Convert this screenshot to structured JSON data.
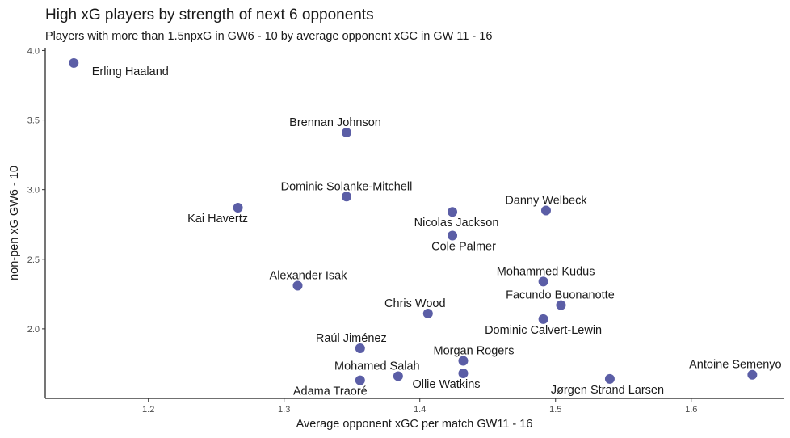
{
  "chart_data": {
    "type": "scatter",
    "title": "High xG players by strength of next 6 opponents",
    "subtitle": "Players with more than 1.5npxG in GW6 - 10 by average opponent xGC in GW 11 - 16",
    "xlabel": "Average opponent xGC per match GW11 - 16",
    "ylabel": "non-pen xG GW6 - 10",
    "xlim": [
      1.124,
      1.668
    ],
    "ylim": [
      1.5,
      4.02
    ],
    "x_ticks": [
      "1.2",
      "1.3",
      "1.4",
      "1.5",
      "1.6"
    ],
    "y_ticks": [
      "2.0",
      "2.5",
      "3.0",
      "3.5",
      "4.0"
    ],
    "grid": false,
    "point_color": "#5b5ea6",
    "points": [
      {
        "name": "Erling Haaland",
        "x": 1.145,
        "y": 3.91
      },
      {
        "name": "Brennan Johnson",
        "x": 1.346,
        "y": 3.41
      },
      {
        "name": "Dominic Solanke-Mitchell",
        "x": 1.346,
        "y": 2.95
      },
      {
        "name": "Kai Havertz",
        "x": 1.266,
        "y": 2.87
      },
      {
        "name": "Danny Welbeck",
        "x": 1.493,
        "y": 2.85
      },
      {
        "name": "Nicolas Jackson",
        "x": 1.424,
        "y": 2.84
      },
      {
        "name": "Cole Palmer",
        "x": 1.424,
        "y": 2.67
      },
      {
        "name": "Mohammed Kudus",
        "x": 1.491,
        "y": 2.34
      },
      {
        "name": "Alexander Isak",
        "x": 1.31,
        "y": 2.31
      },
      {
        "name": "Facundo Buonanotte",
        "x": 1.504,
        "y": 2.17
      },
      {
        "name": "Chris Wood",
        "x": 1.406,
        "y": 2.11
      },
      {
        "name": "Dominic Calvert-Lewin",
        "x": 1.491,
        "y": 2.07
      },
      {
        "name": "Raúl Jiménez",
        "x": 1.356,
        "y": 1.86
      },
      {
        "name": "Morgan Rogers",
        "x": 1.432,
        "y": 1.77
      },
      {
        "name": "Mohamed Salah",
        "x": 1.384,
        "y": 1.66
      },
      {
        "name": "Ollie Watkins",
        "x": 1.432,
        "y": 1.68
      },
      {
        "name": "Adama Traoré",
        "x": 1.356,
        "y": 1.63
      },
      {
        "name": "Jørgen Strand Larsen",
        "x": 1.54,
        "y": 1.64
      },
      {
        "name": "Antoine Semenyo",
        "x": 1.645,
        "y": 1.67
      }
    ]
  }
}
